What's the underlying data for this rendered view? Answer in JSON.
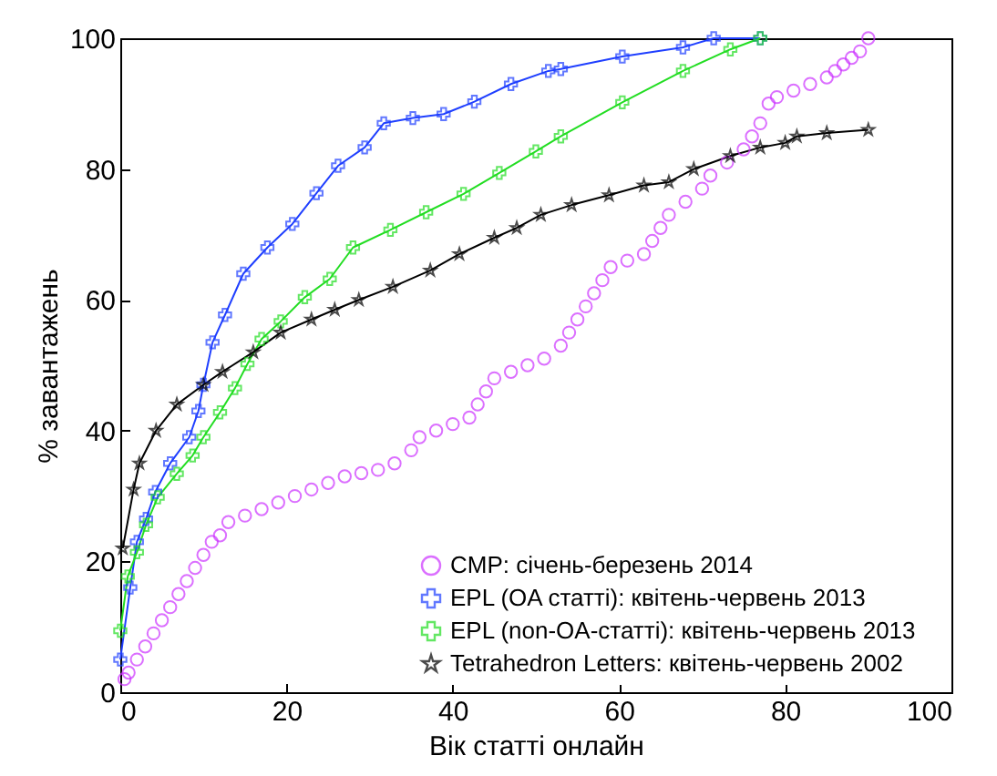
{
  "chart_data": {
    "type": "line",
    "xlabel": "Вік статті онлайн",
    "ylabel": "% завантажень",
    "xlim": [
      0,
      100
    ],
    "ylim": [
      0,
      100
    ],
    "xticks": [
      0,
      20,
      40,
      60,
      80,
      100
    ],
    "yticks": [
      0,
      20,
      40,
      60,
      80,
      100
    ],
    "grid": false,
    "legend": "bottom right",
    "series": [
      {
        "name": "CMP:  січень-березень 2014",
        "type": "scatter",
        "marker": "circle",
        "color": "#cc33ff",
        "x": [
          0.5,
          1,
          2,
          3,
          4,
          5,
          6,
          7,
          8,
          9,
          10,
          11,
          12,
          13,
          15,
          17,
          19,
          21,
          23,
          25,
          27,
          29,
          31,
          33,
          35,
          36,
          38,
          40,
          42,
          43,
          44,
          45,
          47,
          49,
          51,
          53,
          54,
          55,
          56,
          57,
          58,
          59,
          61,
          63,
          64,
          65,
          66,
          68,
          70,
          71,
          73,
          75,
          76,
          77,
          78,
          79,
          81,
          83,
          85,
          86,
          87,
          88,
          89,
          90
        ],
        "values": [
          2,
          3,
          5,
          7,
          9,
          11,
          13,
          15,
          17,
          19,
          21,
          23,
          24,
          26,
          27,
          28,
          29,
          30,
          31,
          32,
          33,
          33.5,
          34,
          35,
          37,
          39,
          40,
          41,
          42,
          44,
          46,
          48,
          49,
          50,
          51,
          53,
          55,
          57,
          59,
          61,
          63,
          65,
          66,
          67,
          69,
          71,
          73,
          75,
          77,
          79,
          81,
          83,
          85,
          87,
          90,
          91,
          92,
          93,
          94,
          95,
          96,
          97,
          98,
          100
        ]
      },
      {
        "name": "EPL  (OA  статті):  квітень-червень  2013",
        "type": "line",
        "marker": "cross",
        "color": "#1f3fff",
        "x": [
          0,
          1.2,
          2,
          3.1,
          4.2,
          6,
          8.3,
          9.4,
          10,
          11.1,
          12.6,
          14.8,
          17.7,
          20.7,
          23.6,
          26.2,
          29.4,
          31.7,
          35.2,
          38.9,
          42.6,
          47,
          51.5,
          53,
          60.4,
          67.7,
          71.4,
          77
        ],
        "values": [
          5,
          16,
          23,
          26.5,
          30.6,
          35,
          39,
          43,
          47,
          53.5,
          57.7,
          64,
          68,
          71.6,
          76.3,
          80.5,
          83.3,
          87,
          87.8,
          88.4,
          90.3,
          93,
          95,
          95.3,
          97.2,
          98.6,
          100,
          100
        ]
      },
      {
        "name": "EPL  (non-OA-статті):  квітень-червень  2013",
        "type": "line",
        "marker": "cross",
        "color": "#22dd22",
        "x": [
          0,
          0.9,
          2,
          3.1,
          4.5,
          6.8,
          8.7,
          10,
          12,
          13.8,
          15.3,
          17,
          19.3,
          22.2,
          25.2,
          28,
          32.5,
          36.8,
          41.3,
          45.6,
          50,
          53,
          60.4,
          67.7,
          73.4,
          77
        ],
        "values": [
          9.4,
          17.7,
          21.4,
          25.6,
          29.8,
          33.4,
          36.2,
          39,
          42.8,
          46.5,
          50.2,
          54,
          56.7,
          60.4,
          63.2,
          68,
          70.7,
          73.4,
          76.2,
          79.4,
          82.7,
          85,
          90.2,
          95,
          98.3,
          100
        ]
      },
      {
        "name": "Tetrahedron  Letters:  квітень-червень  2002",
        "type": "line",
        "marker": "star",
        "color": "#000000",
        "x": [
          0.3,
          1.6,
          2.3,
          4.3,
          6.8,
          10,
          12.3,
          16,
          19.3,
          23,
          25.8,
          28.7,
          32.8,
          37.3,
          40.8,
          45,
          47.7,
          50.6,
          54.3,
          58.8,
          63,
          66,
          69,
          73.4,
          77,
          80,
          81.4,
          85,
          90
        ],
        "values": [
          22,
          31,
          35,
          40,
          44,
          47,
          49,
          52,
          55,
          57,
          58.5,
          60,
          62,
          64.5,
          67,
          69.5,
          71,
          73,
          74.5,
          76,
          77.5,
          78,
          80,
          82,
          83.3,
          84,
          85,
          85.5,
          86
        ]
      }
    ]
  }
}
